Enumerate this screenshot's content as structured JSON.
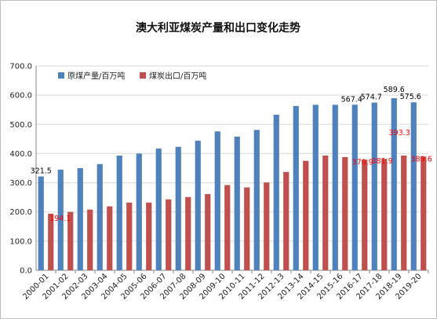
{
  "chart_data": {
    "type": "bar",
    "title": "澳大利亚煤炭产量和出口变化走势",
    "xlabel": "",
    "ylabel": "",
    "ylim": [
      0,
      700
    ],
    "yticks": [
      "0.0",
      "100.0",
      "200.0",
      "300.0",
      "400.0",
      "500.0",
      "600.0",
      "700.0"
    ],
    "grid": true,
    "legend_position": "top-left",
    "categories": [
      "2000-01",
      "2001-02",
      "2002-03",
      "2003-04",
      "2004-05",
      "2005-06",
      "2006-07",
      "2007-08",
      "2008-09",
      "2009-10",
      "2010-11",
      "2011-12",
      "2012-13",
      "2013-14",
      "2014-15",
      "2015-16",
      "2016-17",
      "2017-18",
      "2018-19",
      "2019-20"
    ],
    "series": [
      {
        "name": "原煤产量/百万吨",
        "color": "#4f81bd",
        "label_color": "#000000",
        "values": [
          321.5,
          345,
          350,
          364,
          393,
          400,
          417,
          423,
          444,
          476,
          458,
          481,
          533,
          563,
          567,
          567,
          567.4,
          574.7,
          589.6,
          575.6
        ],
        "data_labels": {
          "0": "321.5",
          "16": "567.4",
          "17": "574.7",
          "18": "589.6",
          "19": "575.6"
        }
      },
      {
        "name": "煤炭出口/百万吨",
        "color": "#c0504d",
        "label_color": "#ff0000",
        "values": [
          194.1,
          200,
          208,
          219,
          232,
          232,
          243,
          251,
          261,
          292,
          284,
          301,
          337,
          375,
          393,
          388,
          378.9,
          381.9,
          393.3,
          389.6
        ],
        "data_labels": {
          "0": "194.1",
          "16": "378.9",
          "17": "381.9",
          "18": "393.3",
          "19": "389.6"
        }
      }
    ]
  }
}
